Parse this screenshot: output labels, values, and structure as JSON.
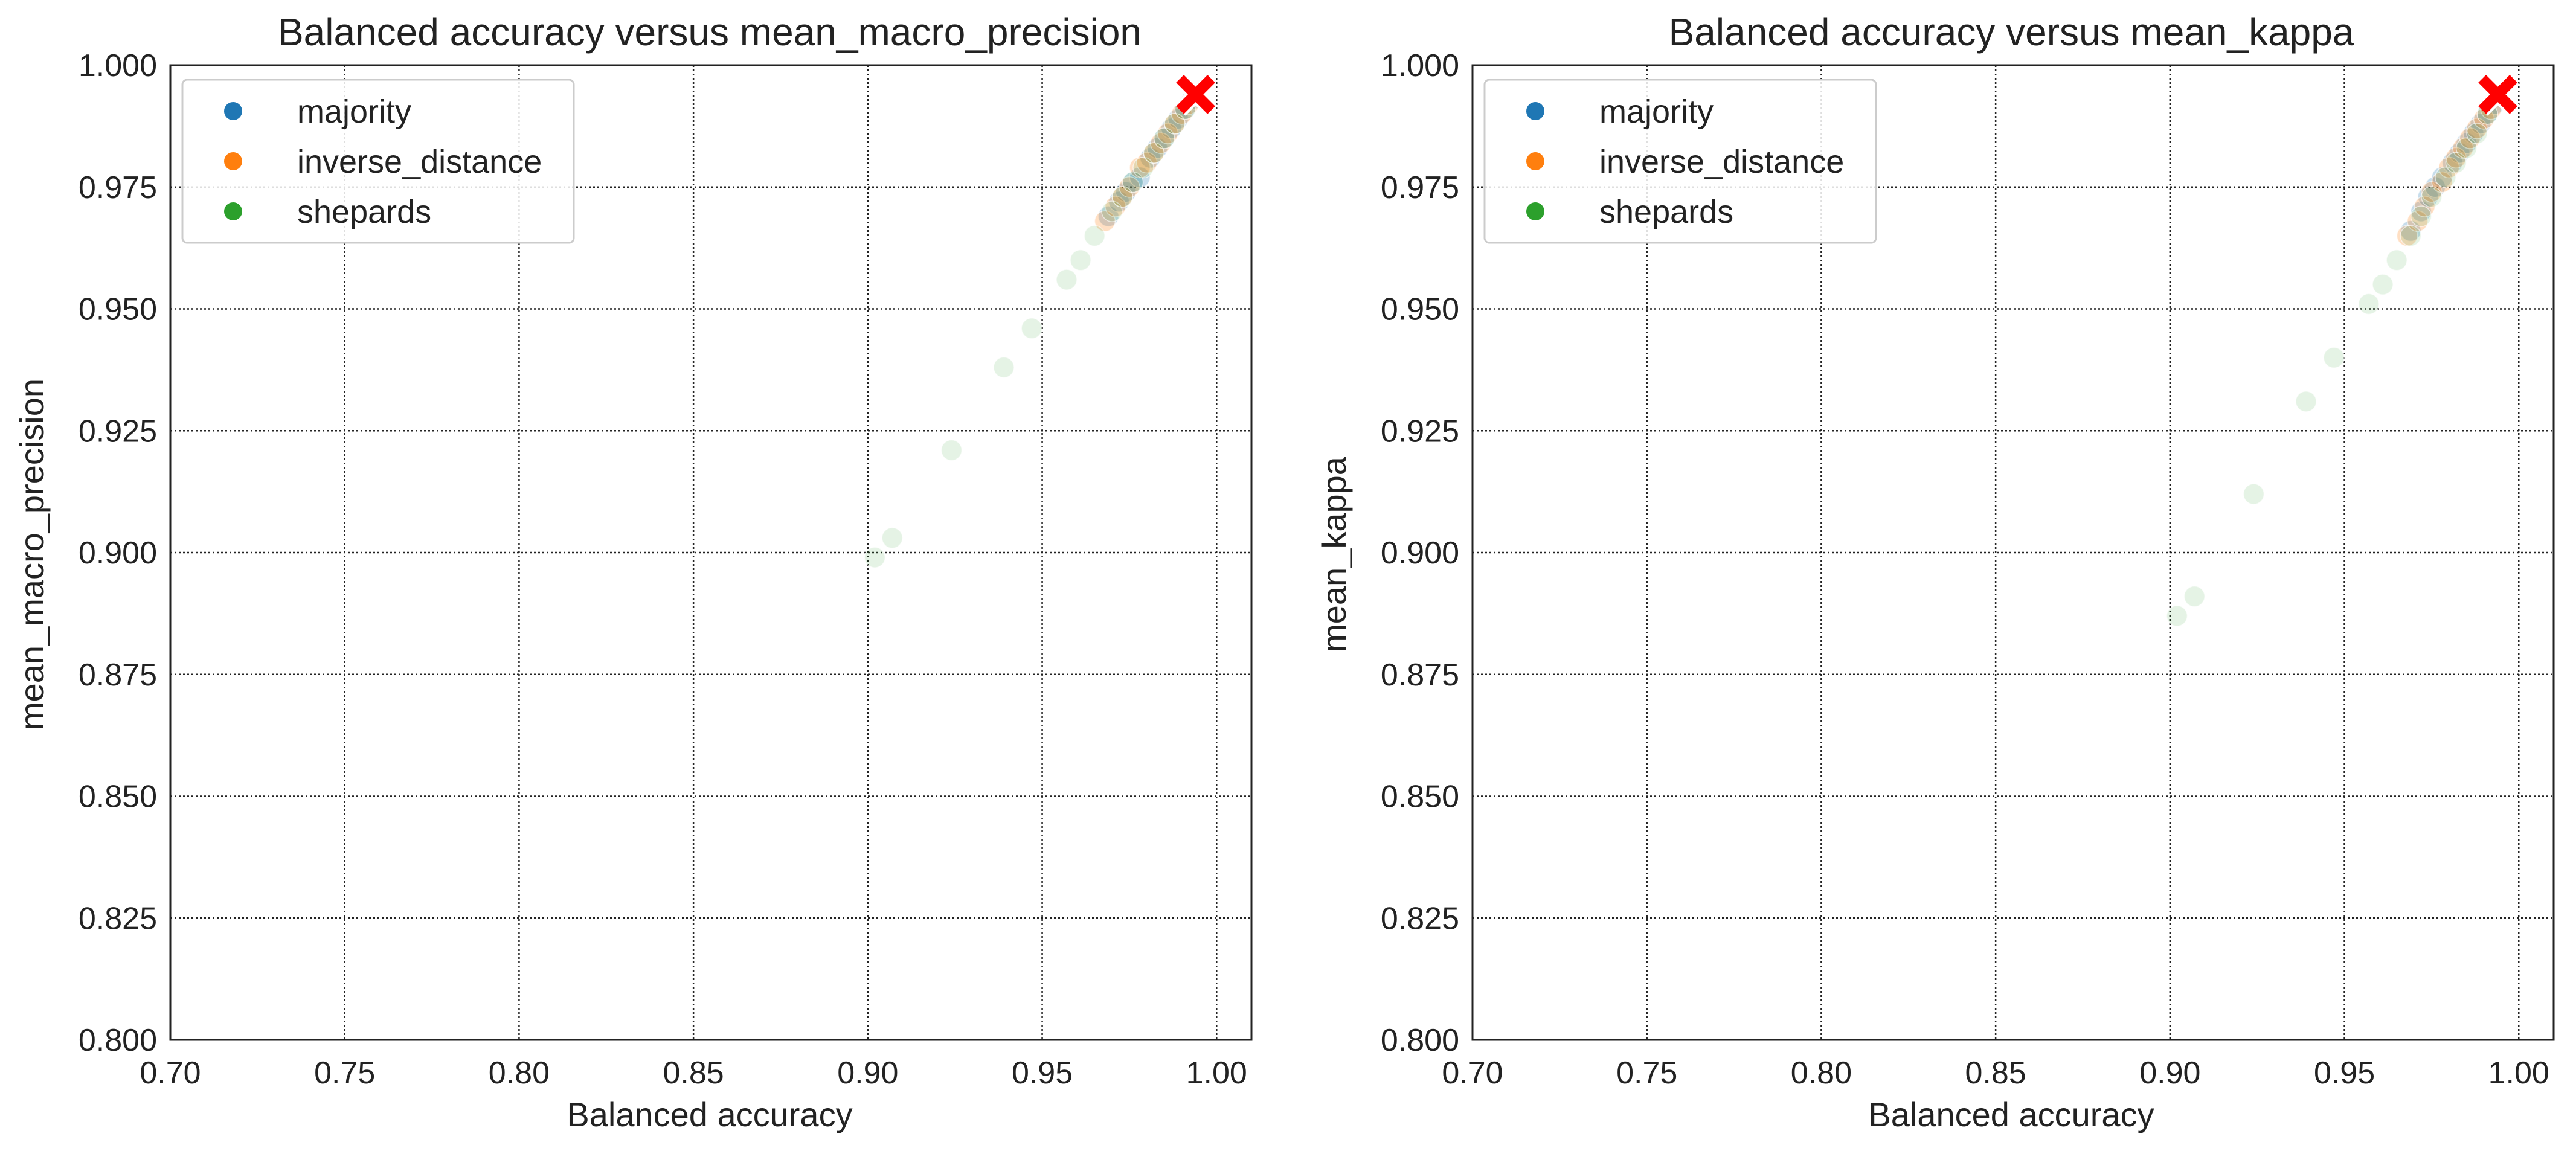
{
  "colors": {
    "majority": "#1f77b4",
    "inverse_distance": "#ff7f0e",
    "shepards": "#2ca02c",
    "best": "#ff0000",
    "grid": "#222222",
    "axes": "#222222"
  },
  "chart_data": [
    {
      "type": "scatter",
      "title": "Balanced accuracy versus mean_macro_precision",
      "xlabel": "Balanced accuracy",
      "ylabel": "mean_macro_precision",
      "xlim": [
        0.7,
        1.01
      ],
      "ylim": [
        0.8,
        1.0
      ],
      "xticks": [
        "0.70",
        "0.75",
        "0.80",
        "0.85",
        "0.90",
        "0.95",
        "1.00"
      ],
      "yticks": [
        "0.800",
        "0.825",
        "0.850",
        "0.875",
        "0.900",
        "0.925",
        "0.950",
        "0.975",
        "1.000"
      ],
      "grid": true,
      "legend_position": "upper-left",
      "series": [
        {
          "name": "majority",
          "color": "#1f77b4",
          "opacity": 0.25,
          "points": [
            [
              0.969,
              0.969
            ],
            [
              0.972,
              0.972
            ],
            [
              0.974,
              0.974
            ],
            [
              0.976,
              0.976
            ],
            [
              0.978,
              0.977
            ],
            [
              0.981,
              0.981
            ],
            [
              0.983,
              0.983
            ],
            [
              0.985,
              0.985
            ],
            [
              0.987,
              0.987
            ],
            [
              0.989,
              0.989
            ],
            [
              0.991,
              0.991
            ],
            [
              0.993,
              0.993
            ]
          ]
        },
        {
          "name": "inverse_distance",
          "color": "#ff7f0e",
          "opacity": 0.25,
          "points": [
            [
              0.968,
              0.968
            ],
            [
              0.971,
              0.971
            ],
            [
              0.973,
              0.973
            ],
            [
              0.975,
              0.975
            ],
            [
              0.978,
              0.979
            ],
            [
              0.98,
              0.98
            ],
            [
              0.982,
              0.982
            ],
            [
              0.984,
              0.984
            ],
            [
              0.986,
              0.986
            ],
            [
              0.988,
              0.988
            ],
            [
              0.99,
              0.99
            ],
            [
              0.992,
              0.992
            ]
          ]
        },
        {
          "name": "shepards",
          "color": "#2ca02c",
          "opacity": 0.12,
          "points": [
            [
              0.902,
              0.899
            ],
            [
              0.907,
              0.903
            ],
            [
              0.924,
              0.921
            ],
            [
              0.939,
              0.938
            ],
            [
              0.947,
              0.946
            ],
            [
              0.957,
              0.956
            ],
            [
              0.961,
              0.96
            ],
            [
              0.965,
              0.965
            ],
            [
              0.97,
              0.97
            ],
            [
              0.973,
              0.973
            ],
            [
              0.976,
              0.976
            ],
            [
              0.979,
              0.979
            ],
            [
              0.982,
              0.982
            ],
            [
              0.985,
              0.985
            ],
            [
              0.988,
              0.988
            ],
            [
              0.991,
              0.991
            ]
          ]
        }
      ],
      "best_point": {
        "x": 0.994,
        "y": 0.994,
        "color": "#ff0000"
      }
    },
    {
      "type": "scatter",
      "title": "Balanced accuracy versus mean_kappa",
      "xlabel": "Balanced accuracy",
      "ylabel": "mean_kappa",
      "xlim": [
        0.7,
        1.01
      ],
      "ylim": [
        0.8,
        1.0
      ],
      "xticks": [
        "0.70",
        "0.75",
        "0.80",
        "0.85",
        "0.90",
        "0.95",
        "1.00"
      ],
      "yticks": [
        "0.800",
        "0.825",
        "0.850",
        "0.875",
        "0.900",
        "0.925",
        "0.950",
        "0.975",
        "1.000"
      ],
      "grid": true,
      "legend_position": "upper-left",
      "series": [
        {
          "name": "majority",
          "color": "#1f77b4",
          "opacity": 0.25,
          "points": [
            [
              0.969,
              0.966
            ],
            [
              0.972,
              0.97
            ],
            [
              0.974,
              0.973
            ],
            [
              0.976,
              0.975
            ],
            [
              0.978,
              0.977
            ],
            [
              0.981,
              0.98
            ],
            [
              0.983,
              0.982
            ],
            [
              0.985,
              0.984
            ],
            [
              0.987,
              0.986
            ],
            [
              0.989,
              0.988
            ],
            [
              0.991,
              0.99
            ],
            [
              0.993,
              0.992
            ]
          ]
        },
        {
          "name": "inverse_distance",
          "color": "#ff7f0e",
          "opacity": 0.25,
          "points": [
            [
              0.968,
              0.965
            ],
            [
              0.971,
              0.968
            ],
            [
              0.973,
              0.971
            ],
            [
              0.975,
              0.974
            ],
            [
              0.978,
              0.976
            ],
            [
              0.98,
              0.979
            ],
            [
              0.982,
              0.981
            ],
            [
              0.984,
              0.983
            ],
            [
              0.986,
              0.985
            ],
            [
              0.988,
              0.987
            ],
            [
              0.99,
              0.989
            ],
            [
              0.992,
              0.991
            ]
          ]
        },
        {
          "name": "shepards",
          "color": "#2ca02c",
          "opacity": 0.12,
          "points": [
            [
              0.902,
              0.887
            ],
            [
              0.907,
              0.891
            ],
            [
              0.924,
              0.912
            ],
            [
              0.939,
              0.931
            ],
            [
              0.947,
              0.94
            ],
            [
              0.957,
              0.951
            ],
            [
              0.961,
              0.955
            ],
            [
              0.965,
              0.96
            ],
            [
              0.969,
              0.965
            ],
            [
              0.972,
              0.969
            ],
            [
              0.975,
              0.973
            ],
            [
              0.979,
              0.977
            ],
            [
              0.982,
              0.98
            ],
            [
              0.985,
              0.983
            ],
            [
              0.988,
              0.986
            ],
            [
              0.991,
              0.99
            ]
          ]
        }
      ],
      "best_point": {
        "x": 0.994,
        "y": 0.994,
        "color": "#ff0000"
      }
    }
  ]
}
